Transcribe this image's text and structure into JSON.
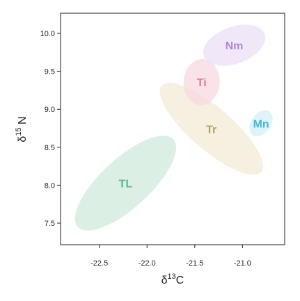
{
  "chart_data": {
    "type": "ellipse",
    "xlabel": [
      "δ",
      "13",
      "C"
    ],
    "ylabel": [
      "δ",
      "15",
      " N"
    ],
    "xlim": [
      -22.906,
      -20.558
    ],
    "ylim": [
      7.216,
      10.266
    ],
    "xticks": [
      -22.5,
      {
        "value": -22.0,
        "label": "-22.0"
      },
      -21.5,
      {
        "value": -21.0,
        "label": "-21.0"
      }
    ],
    "yticks": [
      7.5,
      {
        "value": 8.0,
        "label": "8.0"
      },
      8.5,
      {
        "value": 9.0,
        "label": "9.0"
      },
      9.5,
      {
        "value": 10.0,
        "label": "10.0"
      }
    ],
    "series": [
      {
        "name": "TL",
        "color": "#cfeadb",
        "label_color": "#5cb88a",
        "center": [
          -22.225,
          8.027
        ],
        "major_end": [
          -21.725,
          8.605
        ],
        "minor_end": [
          -22.051,
          7.789
        ]
      },
      {
        "name": "Tr",
        "color": "#f1ebd6",
        "label_color": "#b8a060",
        "center": [
          -21.326,
          8.743
        ],
        "major_end": [
          -20.805,
          8.174
        ],
        "minor_end": [
          -21.181,
          8.954
        ]
      },
      {
        "name": "Ti",
        "color": "#f8d8e2",
        "label_color": "#e07898",
        "center": [
          -21.428,
          9.358
        ],
        "major_end": [
          -21.413,
          9.661
        ],
        "minor_end": [
          -21.239,
          9.339
        ]
      },
      {
        "name": "Nm",
        "color": "#ebe0f5",
        "label_color": "#b088d8",
        "center": [
          -21.087,
          9.844
        ],
        "major_end": [
          -20.768,
          9.991
        ],
        "minor_end": [
          -21.022,
          9.615
        ]
      },
      {
        "name": "Mn",
        "color": "#d4f0f7",
        "label_color": "#48b8d8",
        "center": [
          -20.805,
          8.816
        ],
        "major_end": [
          -20.718,
          8.972
        ],
        "minor_end": [
          -20.885,
          8.899
        ]
      }
    ]
  }
}
